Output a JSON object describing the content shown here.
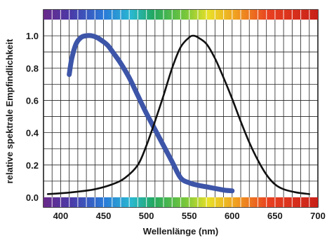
{
  "chart_data": {
    "type": "line",
    "xlabel": "Wellenlänge (nm)",
    "ylabel": "relative spektrale Empfindlichkeit",
    "xlim": [
      380,
      700
    ],
    "ylim": [
      0,
      1.1
    ],
    "grid": true,
    "x_ticks": [
      400,
      450,
      500,
      550,
      600,
      650,
      700
    ],
    "y_ticks": [
      "0.0",
      "0.2",
      "0.4",
      "0.6",
      "0.8",
      "1.0"
    ],
    "spectrum_bars": [
      "top",
      "bottom"
    ],
    "series": [
      {
        "color": "#3d55a8",
        "x": [
          410,
          413,
          418,
          424,
          430,
          436,
          442,
          448,
          455,
          462,
          470,
          480,
          490,
          500,
          510,
          520,
          530,
          540,
          550,
          560,
          570,
          580,
          590,
          600
        ],
        "y": [
          0.76,
          0.86,
          0.95,
          0.99,
          1.0,
          1.0,
          0.99,
          0.97,
          0.94,
          0.89,
          0.83,
          0.74,
          0.63,
          0.52,
          0.42,
          0.32,
          0.22,
          0.12,
          0.09,
          0.075,
          0.065,
          0.055,
          0.045,
          0.04
        ]
      },
      {
        "color": "#111111",
        "x": [
          385,
          400,
          420,
          440,
          460,
          475,
          490,
          500,
          510,
          520,
          530,
          540,
          550,
          555,
          560,
          570,
          580,
          590,
          600,
          610,
          620,
          630,
          640,
          650,
          660,
          675,
          690
        ],
        "y": [
          0.02,
          0.025,
          0.035,
          0.05,
          0.08,
          0.12,
          0.2,
          0.32,
          0.47,
          0.63,
          0.8,
          0.93,
          0.99,
          1.0,
          0.99,
          0.95,
          0.86,
          0.74,
          0.61,
          0.47,
          0.34,
          0.23,
          0.14,
          0.08,
          0.05,
          0.03,
          0.02
        ]
      }
    ]
  }
}
